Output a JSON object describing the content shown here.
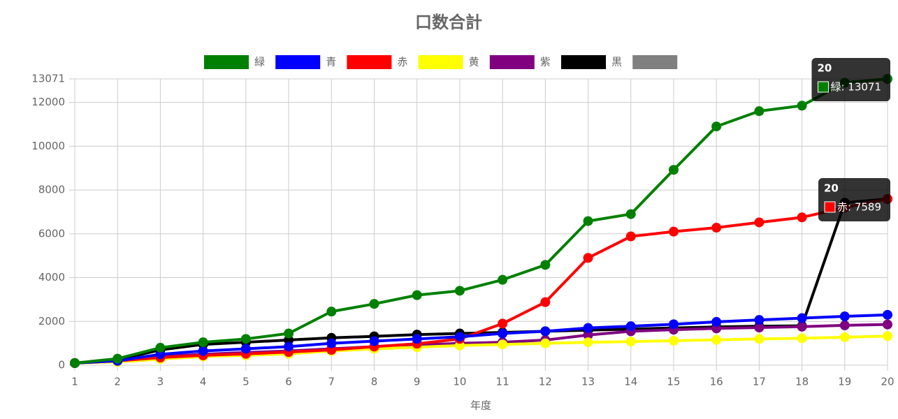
{
  "chart_data": {
    "type": "line",
    "title": "口数合計",
    "x_label": "年度",
    "x": [
      1,
      2,
      3,
      4,
      5,
      6,
      7,
      8,
      9,
      10,
      11,
      12,
      13,
      14,
      15,
      16,
      17,
      18,
      19,
      20
    ],
    "xlim": [
      1,
      20
    ],
    "xticks": [
      1,
      2,
      3,
      4,
      5,
      6,
      7,
      8,
      9,
      10,
      11,
      12,
      13,
      14,
      15,
      16,
      17,
      18,
      19,
      20
    ],
    "ylim": [
      0,
      13071
    ],
    "yticks": [
      0,
      2000,
      4000,
      6000,
      8000,
      10000,
      12000,
      13071
    ],
    "grid": true,
    "legend": "top",
    "series": [
      {
        "name": "緑",
        "color": "#008000",
        "values": [
          100,
          300,
          800,
          1050,
          1200,
          1450,
          2450,
          2800,
          3200,
          3400,
          3900,
          4580,
          6580,
          6900,
          8920,
          10900,
          11600,
          11850,
          12900,
          13071
        ]
      },
      {
        "name": "青",
        "color": "#0000ff",
        "values": [
          100,
          200,
          500,
          650,
          750,
          850,
          1000,
          1100,
          1200,
          1300,
          1450,
          1550,
          1700,
          1780,
          1870,
          1980,
          2070,
          2150,
          2230,
          2300
        ]
      },
      {
        "name": "赤",
        "color": "#ff0000",
        "values": [
          100,
          200,
          350,
          450,
          520,
          600,
          700,
          850,
          980,
          1200,
          1900,
          2880,
          4900,
          5880,
          6100,
          6280,
          6520,
          6750,
          7200,
          7589
        ]
      },
      {
        "name": "黄",
        "color": "#ffff00",
        "values": [
          100,
          150,
          280,
          400,
          450,
          520,
          650,
          750,
          820,
          900,
          950,
          1000,
          1050,
          1080,
          1120,
          1160,
          1200,
          1230,
          1280,
          1330
        ]
      },
      {
        "name": "紫",
        "color": "#800080",
        "values": [
          100,
          200,
          400,
          500,
          580,
          650,
          750,
          850,
          920,
          1000,
          1050,
          1150,
          1380,
          1550,
          1620,
          1680,
          1720,
          1760,
          1820,
          1860
        ]
      },
      {
        "name": "黒",
        "color": "#000000",
        "values": [
          100,
          250,
          700,
          950,
          1050,
          1150,
          1250,
          1320,
          1400,
          1450,
          1500,
          1550,
          1600,
          1650,
          1700,
          1750,
          1780,
          1800,
          7420,
          7589
        ]
      },
      {
        "name": null,
        "color": "#808080",
        "values": [
          null,
          null,
          null,
          null,
          null,
          null,
          null,
          null,
          null,
          null,
          null,
          null,
          null,
          null,
          null,
          null,
          null,
          null,
          null,
          null
        ]
      }
    ],
    "tooltips": [
      {
        "series": 0,
        "index": 19,
        "title": "20",
        "text": "緑: 13071"
      },
      {
        "series": 2,
        "index": 19,
        "title": "20",
        "text": "赤: 7589"
      }
    ]
  }
}
